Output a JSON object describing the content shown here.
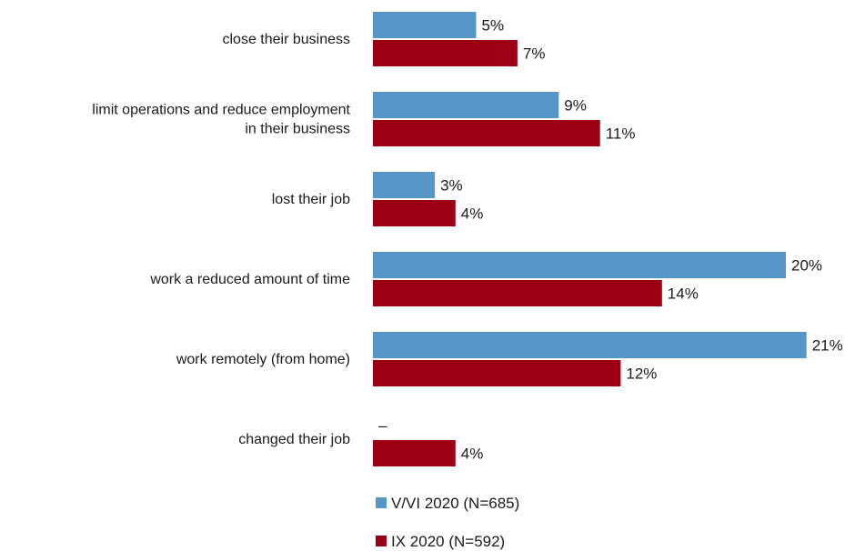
{
  "chart_data": {
    "type": "bar",
    "orientation": "horizontal",
    "categories": [
      [
        "close their business"
      ],
      [
        "limit operations and reduce employment",
        "in their business"
      ],
      [
        "lost their job"
      ],
      [
        "work a reduced amount of time"
      ],
      [
        "work remotely (from home)"
      ],
      [
        "changed their job"
      ]
    ],
    "series": [
      {
        "name": "V/VI 2020 (N=685)",
        "color": "#5796c9",
        "values": [
          5,
          9,
          3,
          20,
          21,
          null
        ],
        "labels": [
          "5%",
          "9%",
          "3%",
          "20%",
          "21%",
          "–"
        ]
      },
      {
        "name": "IX 2020 (N=592)",
        "color": "#9b0015",
        "values": [
          7,
          11,
          4,
          14,
          12,
          4
        ],
        "labels": [
          "7%",
          "11%",
          "4%",
          "14%",
          "12%",
          "4%"
        ]
      }
    ],
    "xlim": [
      0,
      21
    ],
    "grid": false,
    "legend_position": "bottom"
  }
}
